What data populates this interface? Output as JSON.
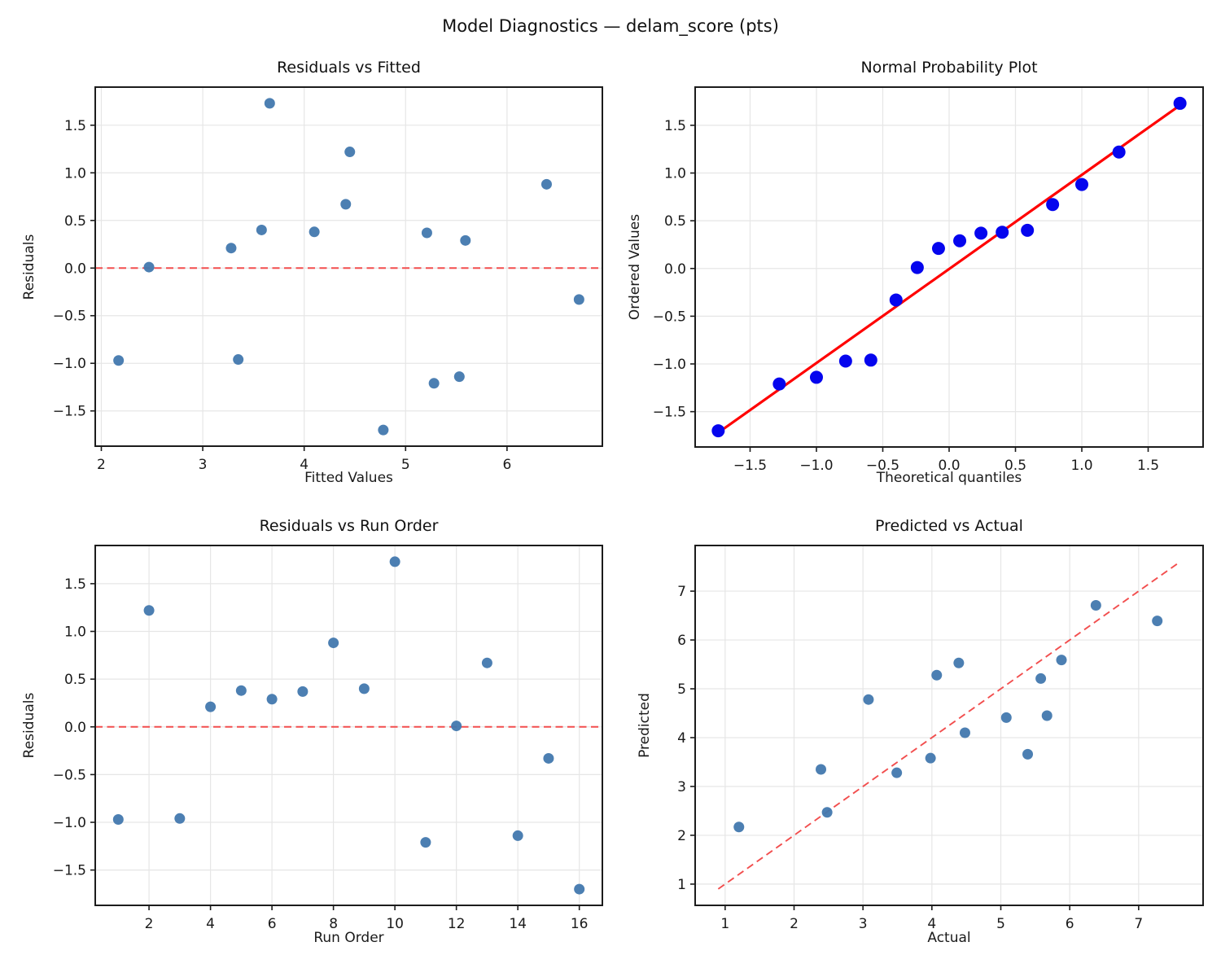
{
  "figure": {
    "suptitle": "Model Diagnostics — delam_score (pts)"
  },
  "colors": {
    "marker_steelblue": "#4278ae",
    "marker_qq_blue": "#0505ee",
    "reference_red": "#f24e4e",
    "fit_red": "#ff0000",
    "grid": "#e6e6e6",
    "spine": "#1c1c1c",
    "text": "#1a1a1a"
  },
  "chart_data": [
    {
      "type": "scatter",
      "title": "Residuals vs Fitted",
      "xlabel": "Fitted Values",
      "ylabel": "Residuals",
      "xlim": [
        1.94,
        6.94
      ],
      "ylim": [
        -1.87,
        1.9
      ],
      "xticks": [
        2,
        3,
        4,
        5,
        6
      ],
      "xtick_labels": [
        "2",
        "3",
        "4",
        "5",
        "6"
      ],
      "yticks": [
        -1.5,
        -1.0,
        -0.5,
        0.0,
        0.5,
        1.0,
        1.5
      ],
      "ytick_labels": [
        "−1.5",
        "−1.0",
        "−0.5",
        "0.0",
        "0.5",
        "1.0",
        "1.5"
      ],
      "grid": true,
      "legend": null,
      "marker_color": "#4278ae",
      "marker_opacity": 0.95,
      "reference_line": {
        "type": "hline",
        "y": 0.0,
        "style": "dashed",
        "color": "#f24e4e"
      },
      "points": [
        [
          2.17,
          -0.97
        ],
        [
          4.45,
          1.22
        ],
        [
          3.35,
          -0.96
        ],
        [
          3.28,
          0.21
        ],
        [
          4.1,
          0.38
        ],
        [
          5.59,
          0.29
        ],
        [
          5.21,
          0.37
        ],
        [
          6.39,
          0.88
        ],
        [
          3.58,
          0.4
        ],
        [
          3.66,
          1.73
        ],
        [
          5.28,
          -1.21
        ],
        [
          2.47,
          0.01
        ],
        [
          4.41,
          0.67
        ],
        [
          5.53,
          -1.14
        ],
        [
          6.71,
          -0.33
        ],
        [
          4.78,
          -1.7
        ]
      ]
    },
    {
      "type": "scatter",
      "title": "Normal Probability Plot",
      "xlabel": "Theoretical quantiles",
      "ylabel": "Ordered Values",
      "xlim": [
        -1.914,
        1.914
      ],
      "ylim": [
        -1.87,
        1.9
      ],
      "xticks": [
        -1.5,
        -1.0,
        -0.5,
        0.0,
        0.5,
        1.0,
        1.5
      ],
      "xtick_labels": [
        "−1.5",
        "−1.0",
        "−0.5",
        "0.0",
        "0.5",
        "1.0",
        "1.5"
      ],
      "yticks": [
        -1.5,
        -1.0,
        -0.5,
        0.0,
        0.5,
        1.0,
        1.5
      ],
      "ytick_labels": [
        "−1.5",
        "−1.0",
        "−0.5",
        "0.0",
        "0.5",
        "1.0",
        "1.5"
      ],
      "grid": true,
      "legend": null,
      "marker_color": "#0505ee",
      "marker_opacity": 1.0,
      "fit_line": {
        "x1": -1.74,
        "y1": -1.72,
        "x2": 1.74,
        "y2": 1.71,
        "style": "solid",
        "color": "#ff0000"
      },
      "points": [
        [
          -1.74,
          -1.7
        ],
        [
          -1.28,
          -1.21
        ],
        [
          -1.0,
          -1.14
        ],
        [
          -0.78,
          -0.97
        ],
        [
          -0.59,
          -0.96
        ],
        [
          -0.4,
          -0.33
        ],
        [
          -0.24,
          0.01
        ],
        [
          -0.08,
          0.21
        ],
        [
          0.08,
          0.29
        ],
        [
          0.24,
          0.37
        ],
        [
          0.4,
          0.38
        ],
        [
          0.59,
          0.4
        ],
        [
          0.78,
          0.67
        ],
        [
          1.0,
          0.88
        ],
        [
          1.28,
          1.22
        ],
        [
          1.74,
          1.73
        ]
      ]
    },
    {
      "type": "scatter",
      "title": "Residuals vs Run Order",
      "xlabel": "Run Order",
      "ylabel": "Residuals",
      "xlim": [
        0.25,
        16.75
      ],
      "ylim": [
        -1.87,
        1.9
      ],
      "xticks": [
        2,
        4,
        6,
        8,
        10,
        12,
        14,
        16
      ],
      "xtick_labels": [
        "2",
        "4",
        "6",
        "8",
        "10",
        "12",
        "14",
        "16"
      ],
      "yticks": [
        -1.5,
        -1.0,
        -0.5,
        0.0,
        0.5,
        1.0,
        1.5
      ],
      "ytick_labels": [
        "−1.5",
        "−1.0",
        "−0.5",
        "0.0",
        "0.5",
        "1.0",
        "1.5"
      ],
      "grid": true,
      "legend": null,
      "marker_color": "#4278ae",
      "marker_opacity": 0.95,
      "reference_line": {
        "type": "hline",
        "y": 0.0,
        "style": "dashed",
        "color": "#f24e4e"
      },
      "points": [
        [
          1,
          -0.97
        ],
        [
          2,
          1.22
        ],
        [
          3,
          -0.96
        ],
        [
          4,
          0.21
        ],
        [
          5,
          0.38
        ],
        [
          6,
          0.29
        ],
        [
          7,
          0.37
        ],
        [
          8,
          0.88
        ],
        [
          9,
          0.4
        ],
        [
          10,
          1.73
        ],
        [
          11,
          -1.21
        ],
        [
          12,
          0.01
        ],
        [
          13,
          0.67
        ],
        [
          14,
          -1.14
        ],
        [
          15,
          -0.33
        ],
        [
          16,
          -1.7
        ]
      ]
    },
    {
      "type": "scatter",
      "title": "Predicted vs Actual",
      "xlabel": "Actual",
      "ylabel": "Predicted",
      "xlim": [
        0.565,
        7.935
      ],
      "ylim": [
        0.565,
        7.935
      ],
      "xticks": [
        1,
        2,
        3,
        4,
        5,
        6,
        7
      ],
      "xtick_labels": [
        "1",
        "2",
        "3",
        "4",
        "5",
        "6",
        "7"
      ],
      "yticks": [
        1,
        2,
        3,
        4,
        5,
        6,
        7
      ],
      "ytick_labels": [
        "1",
        "2",
        "3",
        "4",
        "5",
        "6",
        "7"
      ],
      "grid": true,
      "legend": null,
      "marker_color": "#4278ae",
      "marker_opacity": 0.95,
      "reference_line": {
        "type": "segment",
        "x1": 0.9,
        "y1": 0.9,
        "x2": 7.6,
        "y2": 7.6,
        "style": "dashed",
        "color": "#f24e4e"
      },
      "points": [
        [
          1.2,
          2.17
        ],
        [
          5.67,
          4.45
        ],
        [
          2.39,
          3.35
        ],
        [
          3.49,
          3.28
        ],
        [
          4.48,
          4.1
        ],
        [
          5.88,
          5.59
        ],
        [
          5.58,
          5.21
        ],
        [
          7.27,
          6.39
        ],
        [
          3.98,
          3.58
        ],
        [
          5.39,
          3.66
        ],
        [
          4.07,
          5.28
        ],
        [
          2.48,
          2.47
        ],
        [
          5.08,
          4.41
        ],
        [
          4.39,
          5.53
        ],
        [
          6.38,
          6.71
        ],
        [
          3.08,
          4.78
        ]
      ]
    }
  ]
}
